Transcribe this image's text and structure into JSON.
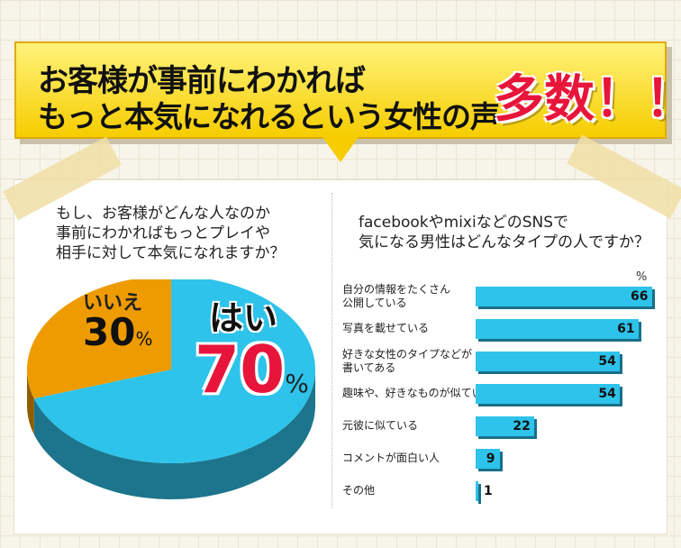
{
  "banner": {
    "line1": "お客様が事前にわかれば",
    "line2": "もっと本気になれるという女性の声",
    "emphasis": "多数！！",
    "emphasis_color": "#e8153b"
  },
  "left": {
    "question_lines": [
      "もし、お客様がどんな人なのか",
      "事前にわかればもっとプレイや",
      "相手に対して本気になれますか？"
    ]
  },
  "right": {
    "question_lines": [
      "facebookやmixiなどのSNSで",
      "気になる男性はどんなタイプの人ですか？"
    ]
  },
  "chart_data": [
    {
      "type": "pie",
      "slices": [
        {
          "label": "はい",
          "value": 70,
          "color": "#2ec3ea"
        },
        {
          "label": "いいえ",
          "value": 30,
          "color": "#ee9b00"
        }
      ],
      "value_suffix": "%"
    },
    {
      "type": "bar",
      "unit": "%",
      "categories": [
        "自分の情報をたくさん\n公開している",
        "写真を載せている",
        "好きな女性のタイプなどが\n書いてある",
        "趣味や、好きなものが似ている",
        "元彼に似ている",
        "コメントが面白い人",
        "その他"
      ],
      "values": [
        66,
        61,
        54,
        54,
        22,
        9,
        1
      ],
      "bar_color": "#2ec3ea",
      "xlim": [
        0,
        66
      ]
    }
  ]
}
